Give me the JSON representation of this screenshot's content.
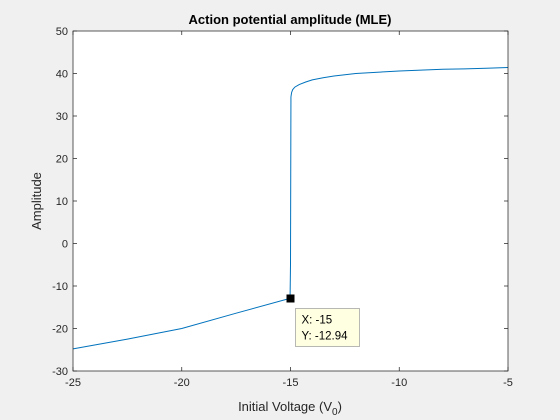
{
  "chart_data": {
    "type": "line",
    "title": "Action potential amplitude (MLE)",
    "xlabel": "Initial Voltage (V",
    "xlabel_subscript": "0",
    "xlabel_close": ")",
    "ylabel": "Amplitude",
    "xlim": [
      -25,
      -5
    ],
    "ylim": [
      -30,
      50
    ],
    "xticks": [
      -25,
      -20,
      -15,
      -10,
      -5
    ],
    "yticks": [
      -30,
      -20,
      -10,
      0,
      10,
      20,
      30,
      40,
      50
    ],
    "grid": false,
    "series": [
      {
        "color": "#0072bd",
        "x": [
          -25,
          -22.5,
          -20,
          -17.5,
          -15.05,
          -15.02,
          -15.0,
          -14.98,
          -14.95,
          -14.9,
          -14.8,
          -14.6,
          -14.3,
          -14.0,
          -13.5,
          -13.0,
          -12.5,
          -12.0,
          -11.0,
          -10.0,
          -9.0,
          -8.0,
          -7.0,
          -6.0,
          -5.0
        ],
        "y": [
          -24.8,
          -22.5,
          -20.0,
          -16.4,
          -12.94,
          -12.94,
          -5.0,
          34.5,
          35.5,
          36.2,
          36.8,
          37.4,
          38.0,
          38.5,
          39.0,
          39.4,
          39.7,
          40.0,
          40.3,
          40.6,
          40.8,
          41.0,
          41.1,
          41.25,
          41.4
        ]
      }
    ],
    "datatip": {
      "x": -15,
      "y": -12.94,
      "x_label": "X: -15",
      "y_label": "Y: -12.94"
    }
  }
}
